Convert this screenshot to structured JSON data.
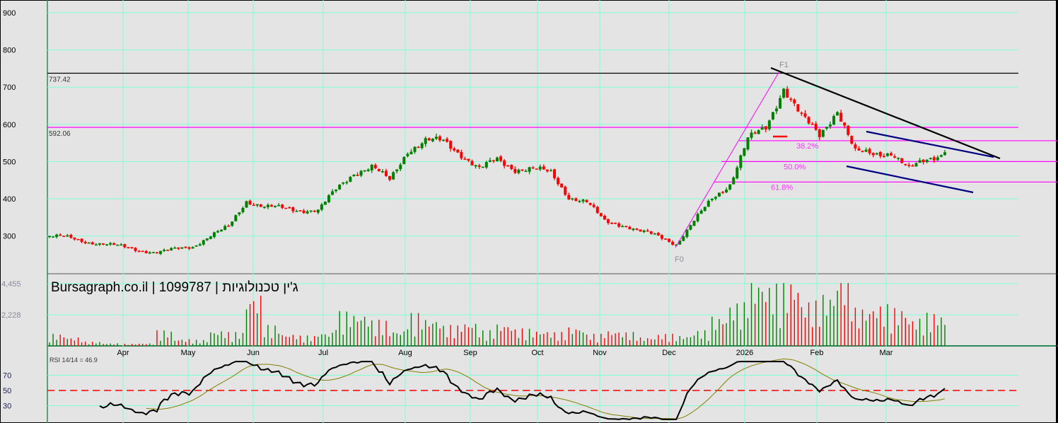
{
  "title": "Bursagraph.co.il | 1099787 | ג'ין טכנולוגיות",
  "colors": {
    "up": "#008000",
    "down": "#ff0000",
    "grid": "#7fffd4",
    "fib": "#ff00ff",
    "trend": "#000000",
    "channel": "#000080",
    "rsi": "#000000",
    "rsi_ma": "#808000",
    "rsi_mid": "#ff0000",
    "background": "#e4e4e4"
  },
  "chart_data": [
    {
      "type": "candlestick",
      "panel": "price",
      "y_ticks": [
        300,
        400,
        500,
        600,
        700,
        800,
        900
      ],
      "ylim": [
        210,
        910
      ],
      "grid": true,
      "months": [
        "Apr",
        "May",
        "Jun",
        "Jul",
        "Aug",
        "Sep",
        "Oct",
        "Nov",
        "Dec",
        "2026",
        "Feb",
        "Mar"
      ],
      "weekly_close": [
        300,
        296,
        285,
        278,
        272,
        262,
        255,
        265,
        272,
        300,
        325,
        395,
        378,
        375,
        370,
        368,
        425,
        470,
        485,
        450,
        530,
        555,
        555,
        520,
        480,
        505,
        480,
        480,
        470,
        405,
        390,
        340,
        330,
        312,
        300,
        278,
        340,
        400,
        440,
        560,
        590,
        700,
        620,
        570,
        640,
        525,
        520,
        525,
        480,
        505,
        525
      ],
      "levels": [
        {
          "label": "737.42",
          "value": 737.42,
          "color": "#000000"
        },
        {
          "label": "592.06",
          "value": 592.06,
          "color": "#ff00ff"
        }
      ],
      "fibonacci": {
        "start_label": "F0",
        "start_value": 275,
        "end_label": "F1",
        "end_value": 737.42,
        "retracements": [
          {
            "label": "38.2%",
            "value": 556
          },
          {
            "label": "50.0%",
            "value": 500
          },
          {
            "label": "61.8%",
            "value": 445
          }
        ]
      }
    },
    {
      "type": "bar",
      "panel": "volume",
      "y_ticks": [
        {
          "label": "4,455",
          "value": 4455
        },
        {
          "label": "2,228",
          "value": 2228
        }
      ],
      "weekly_volume": [
        700,
        500,
        250,
        150,
        120,
        150,
        900,
        400,
        350,
        900,
        800,
        3000,
        1200,
        700,
        600,
        800,
        2000,
        1900,
        1500,
        900,
        1900,
        1600,
        1200,
        1400,
        900,
        1300,
        1000,
        900,
        800,
        1100,
        700,
        900,
        800,
        500,
        700,
        600,
        900,
        1700,
        2500,
        3900,
        3600,
        3800,
        2600,
        3000,
        4300,
        2200,
        2400,
        2200,
        1600,
        1900,
        1500
      ]
    },
    {
      "type": "line",
      "panel": "rsi",
      "label": "RSI 14/14 = 46.9",
      "y_ticks": [
        70,
        50,
        30
      ],
      "ylim": [
        10,
        90
      ]
    }
  ]
}
